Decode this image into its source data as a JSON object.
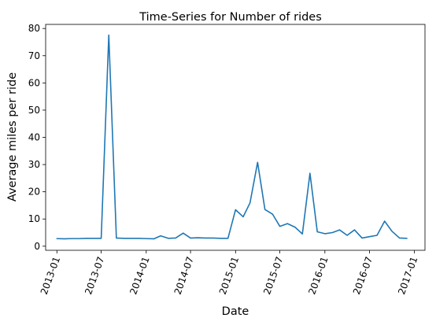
{
  "chart_data": {
    "type": "line",
    "title": "Time-Series for Number of rides",
    "xlabel": "Date",
    "ylabel": "Average miles per ride",
    "ylim": [
      -1.5,
      81.5
    ],
    "xlim": [
      "2012-11-16",
      "2017-02-13"
    ],
    "grid": false,
    "color": "#1f77b4",
    "xticks": [
      "2013-01-01",
      "2013-07-01",
      "2014-01-01",
      "2014-07-01",
      "2015-01-01",
      "2015-07-01",
      "2016-01-01",
      "2016-07-01",
      "2017-01-01"
    ],
    "xtick_labels": [
      "2013-01",
      "2013-07",
      "2014-01",
      "2014-07",
      "2015-01",
      "2015-07",
      "2016-01",
      "2016-07",
      "2017-01"
    ],
    "yticks": [
      0,
      10,
      20,
      30,
      40,
      50,
      60,
      70,
      80
    ],
    "ytick_labels": [
      "0",
      "10",
      "20",
      "30",
      "40",
      "50",
      "60",
      "70",
      "80"
    ],
    "series": [
      {
        "x": [
          "2013-01-01",
          "2013-02-01",
          "2013-03-01",
          "2013-04-01",
          "2013-05-01",
          "2013-06-01",
          "2013-07-01",
          "2013-08-01",
          "2013-09-01",
          "2013-10-01",
          "2013-11-01",
          "2013-12-01",
          "2014-01-01",
          "2014-02-01",
          "2014-03-01",
          "2014-04-01",
          "2014-05-01",
          "2014-06-01",
          "2014-07-01",
          "2014-08-01",
          "2014-09-01",
          "2014-10-01",
          "2014-11-01",
          "2014-12-01",
          "2015-01-01",
          "2015-02-01",
          "2015-03-01",
          "2015-04-01",
          "2015-05-01",
          "2015-06-01",
          "2015-07-01",
          "2015-08-01",
          "2015-09-01",
          "2015-10-01",
          "2015-11-01",
          "2015-12-01",
          "2016-01-01",
          "2016-02-01",
          "2016-03-01",
          "2016-04-01",
          "2016-05-01",
          "2016-06-01",
          "2016-07-01",
          "2016-08-01",
          "2016-09-01",
          "2016-10-01",
          "2016-11-01",
          "2016-12-01"
        ],
        "values": [
          2.8,
          2.7,
          2.8,
          2.8,
          2.9,
          2.9,
          2.9,
          77.6,
          3.0,
          2.9,
          2.9,
          2.9,
          2.8,
          2.7,
          3.8,
          2.9,
          3.0,
          4.8,
          3.0,
          3.1,
          3.0,
          3.0,
          2.9,
          2.9,
          13.4,
          10.8,
          15.9,
          30.8,
          13.5,
          11.8,
          7.3,
          8.3,
          7.0,
          4.5,
          26.8,
          5.3,
          4.6,
          5.0,
          6.0,
          4.0,
          6.0,
          3.0,
          3.5,
          4.0,
          9.2,
          5.5,
          3.0,
          2.9
        ]
      }
    ]
  }
}
